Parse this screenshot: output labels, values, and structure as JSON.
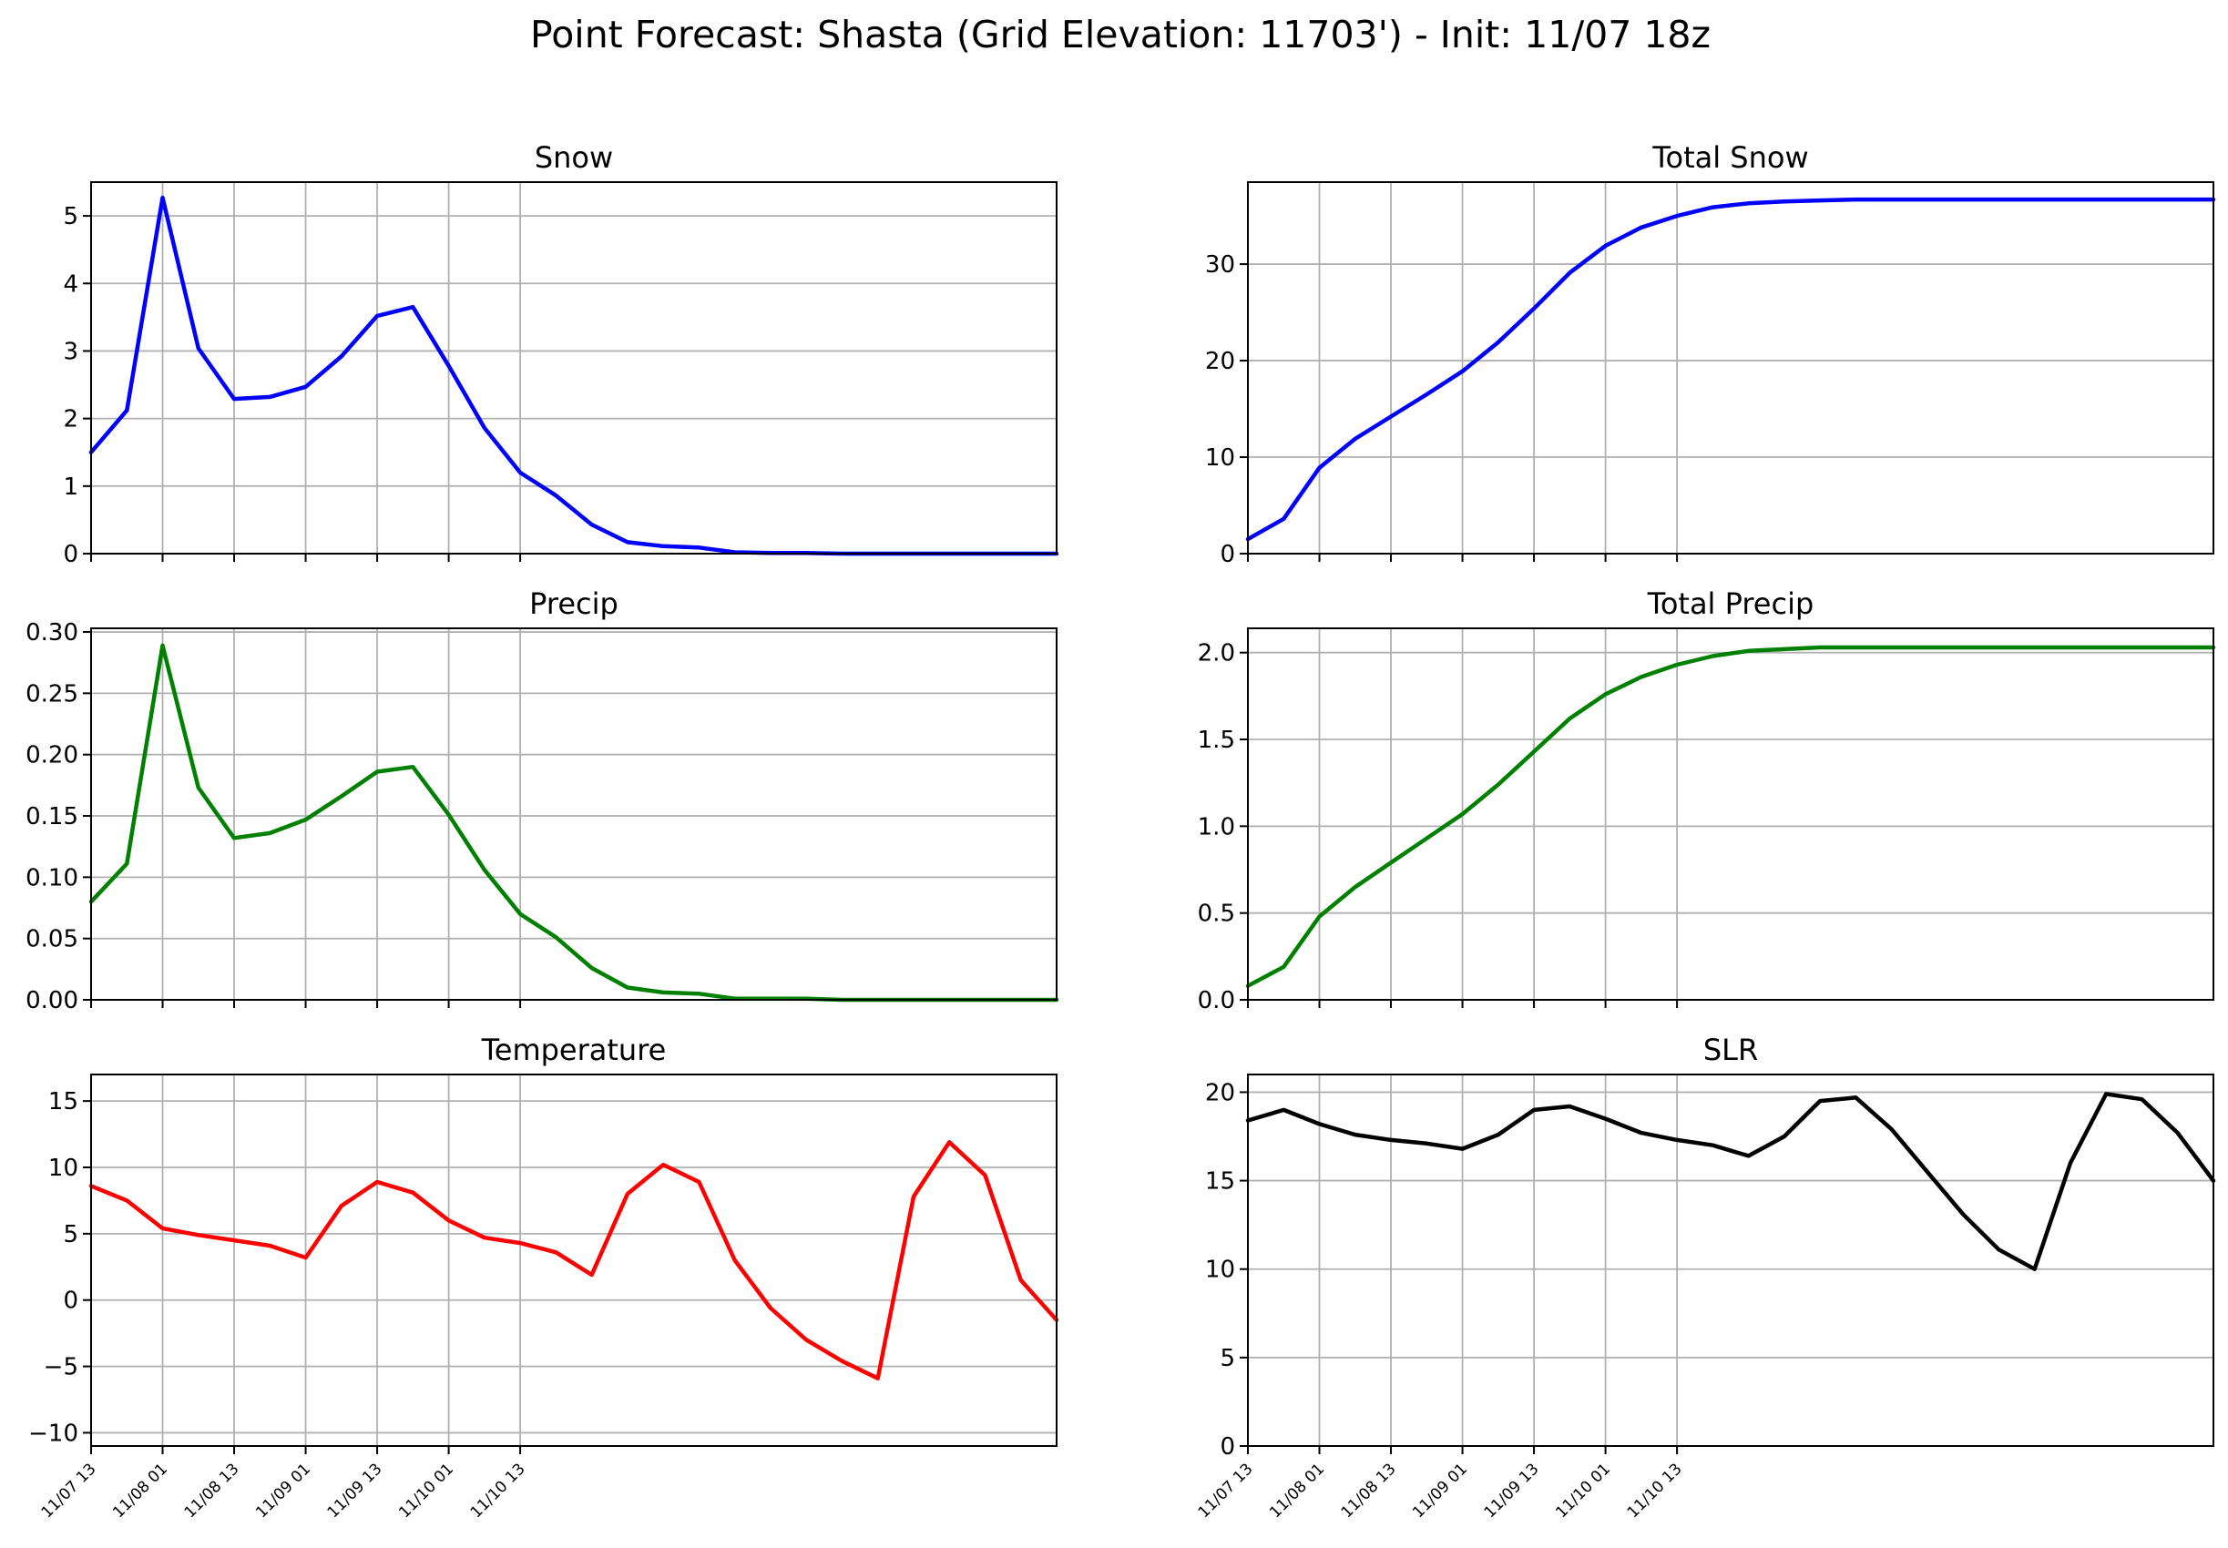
{
  "figure": {
    "title": "Point Forecast: Shasta (Grid Elevation: 11703') - Init: 11/07 18z"
  },
  "x_time": {
    "start": "11/07 13",
    "step_hours": 6,
    "count": 28,
    "tick_labels": [
      "11/07 13",
      "11/08 01",
      "11/08 13",
      "11/09 01",
      "11/09 13",
      "11/10 01",
      "11/10 13"
    ]
  },
  "chart_data": [
    {
      "type": "line",
      "title": "Snow",
      "color": "#0000ff",
      "ylim": [
        0,
        5.5
      ],
      "yticks": [
        0,
        1,
        2,
        3,
        4,
        5
      ],
      "ytick_labels": [
        "0",
        "1",
        "2",
        "3",
        "4",
        "5"
      ],
      "grid": true,
      "values": [
        1.5,
        2.12,
        5.27,
        3.04,
        2.29,
        2.32,
        2.47,
        2.92,
        3.52,
        3.65,
        2.78,
        1.86,
        1.2,
        0.86,
        0.43,
        0.17,
        0.11,
        0.09,
        0.02,
        0.01,
        0.01,
        0.0,
        0.0,
        0.0,
        0.0,
        0.0,
        0.0,
        0.0
      ]
    },
    {
      "type": "line",
      "title": "Total Snow",
      "color": "#0000ff",
      "ylim": [
        0,
        38.5
      ],
      "yticks": [
        0,
        10,
        20,
        30
      ],
      "ytick_labels": [
        "0",
        "10",
        "20",
        "30"
      ],
      "grid": true,
      "values": [
        1.5,
        3.6,
        8.9,
        11.9,
        14.2,
        16.5,
        18.9,
        21.9,
        25.4,
        29.1,
        31.9,
        33.8,
        35.0,
        35.9,
        36.3,
        36.5,
        36.6,
        36.7,
        36.7,
        36.7,
        36.7,
        36.7,
        36.7,
        36.7,
        36.7,
        36.7,
        36.7,
        36.7
      ]
    },
    {
      "type": "line",
      "title": "Precip",
      "color": "#008000",
      "ylim": [
        0,
        0.303
      ],
      "yticks": [
        0,
        0.05,
        0.1,
        0.15,
        0.2,
        0.25,
        0.3
      ],
      "ytick_labels": [
        "0.00",
        "0.05",
        "0.10",
        "0.15",
        "0.20",
        "0.25",
        "0.30"
      ],
      "grid": true,
      "values": [
        0.08,
        0.111,
        0.289,
        0.173,
        0.132,
        0.136,
        0.147,
        0.166,
        0.186,
        0.19,
        0.151,
        0.106,
        0.07,
        0.051,
        0.026,
        0.01,
        0.006,
        0.005,
        0.001,
        0.001,
        0.001,
        0.0,
        0.0,
        0.0,
        0.0,
        0.0,
        0.0,
        0.0
      ]
    },
    {
      "type": "line",
      "title": "Total Precip",
      "color": "#008000",
      "ylim": [
        0,
        2.14
      ],
      "yticks": [
        0,
        0.5,
        1.0,
        1.5,
        2.0
      ],
      "ytick_labels": [
        "0.0",
        "0.5",
        "1.0",
        "1.5",
        "2.0"
      ],
      "grid": true,
      "values": [
        0.08,
        0.19,
        0.48,
        0.65,
        0.79,
        0.93,
        1.07,
        1.24,
        1.43,
        1.62,
        1.76,
        1.86,
        1.93,
        1.98,
        2.01,
        2.02,
        2.03,
        2.03,
        2.03,
        2.03,
        2.03,
        2.03,
        2.03,
        2.03,
        2.03,
        2.03,
        2.03,
        2.03
      ]
    },
    {
      "type": "line",
      "title": "Temperature",
      "color": "#ff0000",
      "ylim": [
        -11,
        17
      ],
      "yticks": [
        -10,
        -5,
        0,
        5,
        10,
        15
      ],
      "ytick_labels": [
        "−10",
        "−5",
        "0",
        "5",
        "10",
        "15"
      ],
      "grid": true,
      "values": [
        8.6,
        7.5,
        5.4,
        4.9,
        4.5,
        4.1,
        3.2,
        7.1,
        8.9,
        8.1,
        6.0,
        4.7,
        4.3,
        3.6,
        1.9,
        8.0,
        10.2,
        8.9,
        3.0,
        -0.6,
        -3.0,
        -4.6,
        -5.9,
        7.8,
        11.9,
        9.4,
        1.5,
        -1.5
      ]
    },
    {
      "type": "line",
      "title": "SLR",
      "color": "#000000",
      "ylim": [
        0,
        21
      ],
      "yticks": [
        0,
        5,
        10,
        15,
        20
      ],
      "ytick_labels": [
        "0",
        "5",
        "10",
        "15",
        "20"
      ],
      "grid": true,
      "values": [
        18.4,
        19.0,
        18.2,
        17.6,
        17.3,
        17.1,
        16.8,
        17.6,
        19.0,
        19.2,
        18.5,
        17.7,
        17.3,
        17.0,
        16.4,
        17.5,
        19.5,
        19.7,
        17.9,
        15.5,
        13.1,
        11.1,
        10.0,
        16.0,
        19.9,
        19.6,
        17.7,
        15.0
      ]
    }
  ]
}
